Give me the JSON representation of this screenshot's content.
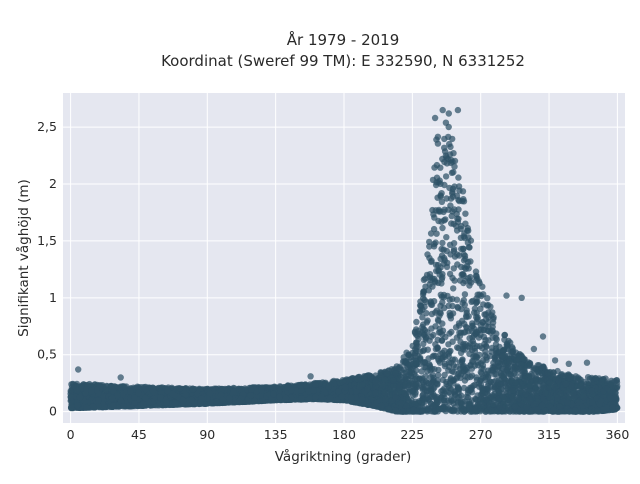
{
  "chart_data": {
    "type": "scatter",
    "title": "År 1979 - 2019",
    "subtitle": "Koordinat (Sweref 99 TM): E 332590, N 6331252",
    "xlabel": "Vågriktning (grader)",
    "ylabel": "Signifikant våghöjd (m)",
    "xlim": [
      -5,
      365
    ],
    "ylim": [
      -0.1,
      2.8
    ],
    "x_ticks": [
      0,
      45,
      90,
      135,
      180,
      225,
      270,
      315,
      360
    ],
    "y_ticks": [
      0,
      0.5,
      1,
      1.5,
      2,
      2.5
    ],
    "y_tick_labels": [
      "0",
      "0,5",
      "1",
      "1,5",
      "2",
      "2,5"
    ],
    "grid": true,
    "point_color": "#2e5266",
    "background_color": "#e5e7f0",
    "series": [
      {
        "x": [
          0,
          45,
          90,
          135,
          160,
          180,
          200,
          215,
          225,
          232,
          238,
          242,
          246,
          250,
          254,
          258,
          262,
          266,
          270,
          276,
          282,
          290,
          300,
          315,
          330,
          345,
          360
        ],
        "y_max": [
          0.25,
          0.22,
          0.2,
          0.22,
          0.25,
          0.28,
          0.33,
          0.4,
          0.6,
          1.1,
          2.0,
          2.55,
          2.6,
          2.55,
          2.35,
          2.0,
          1.6,
          1.35,
          1.15,
          0.95,
          0.75,
          0.6,
          0.45,
          0.38,
          0.32,
          0.3,
          0.28
        ],
        "y_min": [
          0.03,
          0.05,
          0.07,
          0.1,
          0.11,
          0.1,
          0.05,
          0.0,
          0.0,
          0.0,
          0.0,
          0.0,
          0.0,
          0.0,
          0.0,
          0.0,
          0.0,
          0.0,
          0.0,
          0.0,
          0.0,
          0.0,
          0.0,
          0.0,
          0.0,
          0.0,
          0.02
        ]
      }
    ],
    "outliers": [
      {
        "x": 5,
        "y": 0.37
      },
      {
        "x": 33,
        "y": 0.3
      },
      {
        "x": 158,
        "y": 0.31
      },
      {
        "x": 245,
        "y": 2.65
      },
      {
        "x": 249,
        "y": 2.62
      },
      {
        "x": 240,
        "y": 2.58
      },
      {
        "x": 255,
        "y": 2.65
      },
      {
        "x": 287,
        "y": 1.02
      },
      {
        "x": 297,
        "y": 1.0
      },
      {
        "x": 311,
        "y": 0.66
      },
      {
        "x": 305,
        "y": 0.55
      },
      {
        "x": 319,
        "y": 0.45
      },
      {
        "x": 340,
        "y": 0.43
      },
      {
        "x": 328,
        "y": 0.42
      }
    ]
  }
}
